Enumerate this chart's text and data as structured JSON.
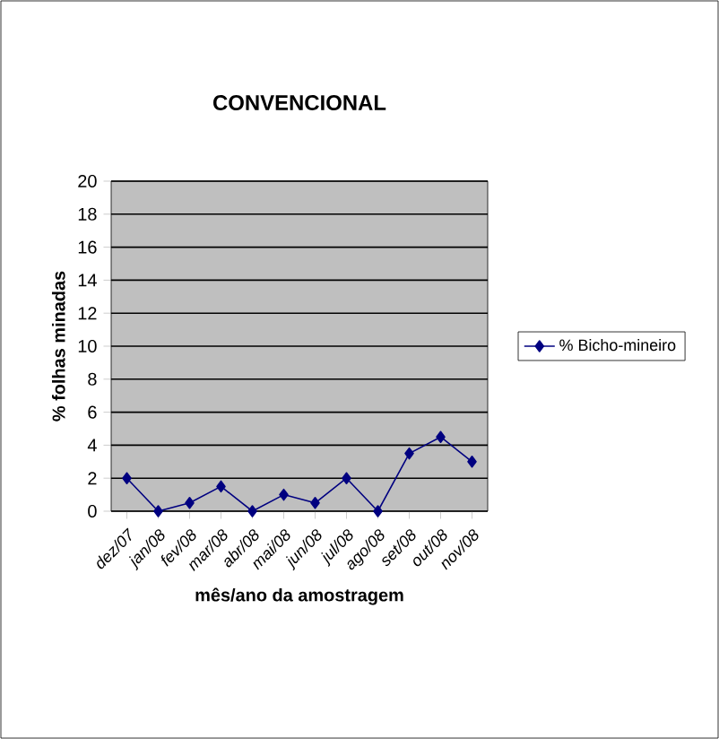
{
  "chart_data": {
    "type": "line",
    "title": "CONVENCIONAL",
    "xlabel": "mês/ano da amostragem",
    "ylabel": "% folhas minadas",
    "categories": [
      "dez/07",
      "jan/08",
      "fev/08",
      "mar/08",
      "abr/08",
      "mai/08",
      "jun/08",
      "jul/08",
      "ago/08",
      "set/08",
      "out/08",
      "nov/08"
    ],
    "series": [
      {
        "name": "% Bicho-mineiro",
        "color": "#000080",
        "values": [
          2,
          0,
          0.5,
          1.5,
          0,
          1,
          0.5,
          2,
          0,
          3.5,
          4.5,
          3
        ]
      }
    ],
    "ylim": [
      0,
      20
    ],
    "yticks": [
      0,
      2,
      4,
      6,
      8,
      10,
      12,
      14,
      16,
      18,
      20
    ],
    "grid": "y",
    "legend": "right",
    "marker": "diamond",
    "line_style": "solid"
  }
}
